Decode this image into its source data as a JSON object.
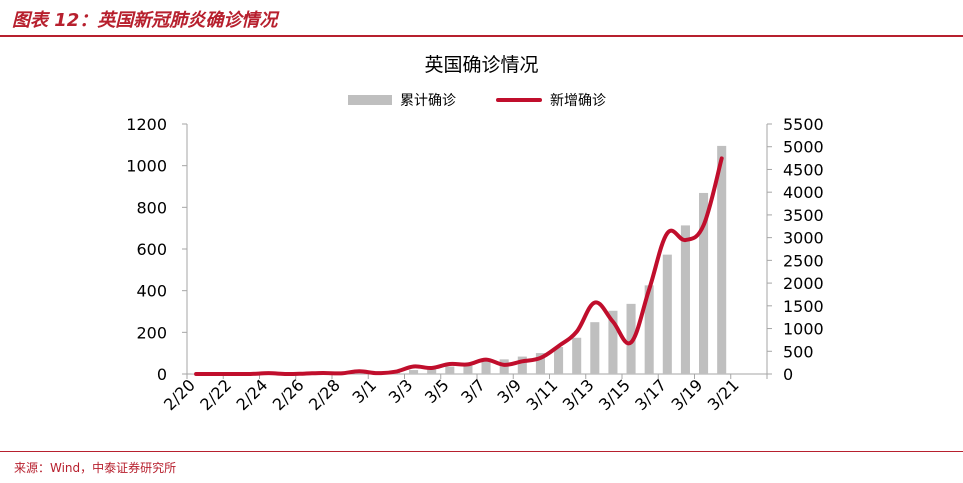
{
  "header": {
    "figure_title": "图表 12：英国新冠肺炎确诊情况"
  },
  "footer": {
    "source": "来源：Wind，中泰证券研究所"
  },
  "colors": {
    "accent": "#b7202e",
    "bar": "#bfbfbf",
    "line": "#c00e2c",
    "axis": "#a6a6a6"
  },
  "chart_data": {
    "type": "bar+line",
    "title": "英国确诊情况",
    "legend_placement": "top-center",
    "grid": false,
    "categories": [
      "2/20",
      "2/21",
      "2/22",
      "2/23",
      "2/24",
      "2/25",
      "2/26",
      "2/27",
      "2/28",
      "2/29",
      "3/1",
      "3/2",
      "3/3",
      "3/4",
      "3/5",
      "3/6",
      "3/7",
      "3/8",
      "3/9",
      "3/10",
      "3/11",
      "3/12",
      "3/13",
      "3/14",
      "3/15",
      "3/16",
      "3/17",
      "3/18",
      "3/19",
      "3/20",
      "3/21",
      "3/22"
    ],
    "xtick_labels": [
      "2/20",
      "2/22",
      "2/24",
      "2/26",
      "2/28",
      "3/1",
      "3/3",
      "3/5",
      "3/7",
      "3/9",
      "3/11",
      "3/13",
      "3/15",
      "3/17",
      "3/19",
      "3/21"
    ],
    "series": [
      {
        "name": "累计确诊",
        "axis": "right",
        "kind": "bar",
        "values": [
          9,
          9,
          9,
          9,
          13,
          13,
          15,
          20,
          23,
          36,
          40,
          51,
          87,
          116,
          164,
          209,
          278,
          322,
          383,
          460,
          594,
          797,
          1140,
          1391,
          1543,
          1950,
          2626,
          3269,
          3983,
          5018,
          0,
          0
        ]
      },
      {
        "name": "新增确诊",
        "axis": "left",
        "kind": "line",
        "values": [
          0,
          0,
          0,
          0,
          4,
          0,
          2,
          5,
          3,
          13,
          4,
          11,
          36,
          29,
          48,
          46,
          69,
          44,
          61,
          77,
          134,
          203,
          343,
          251,
          152,
          407,
          676,
          643,
          714,
          1035,
          0,
          0
        ]
      }
    ],
    "y_left": {
      "min": 0,
      "max": 1200,
      "ticks": [
        0,
        200,
        400,
        600,
        800,
        1000,
        1200
      ]
    },
    "y_right": {
      "min": 0,
      "max": 5500,
      "ticks": [
        0,
        500,
        1000,
        1500,
        2000,
        2500,
        3000,
        3500,
        4000,
        4500,
        5000,
        5500
      ]
    }
  }
}
